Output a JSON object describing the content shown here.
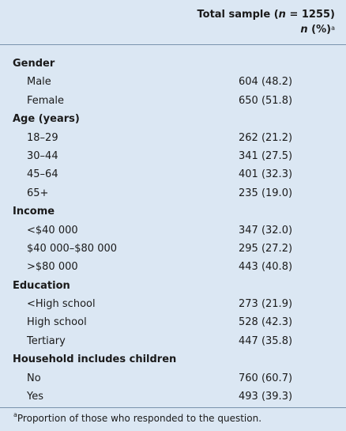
{
  "header": {
    "title_prefix": "Total sample (",
    "title_n": "n",
    "title_suffix": " = 1255)",
    "subtitle_n": "n",
    "subtitle_suffix": " (%)",
    "subtitle_sup": "a"
  },
  "groups": [
    {
      "label": "Gender",
      "rows": [
        {
          "label": "Male",
          "value": "604 (48.2)"
        },
        {
          "label": "Female",
          "value": "650 (51.8)"
        }
      ]
    },
    {
      "label": "Age (years)",
      "rows": [
        {
          "label": "18–29",
          "value": "262 (21.2)"
        },
        {
          "label": "30–44",
          "value": "341 (27.5)"
        },
        {
          "label": "45–64",
          "value": "401 (32.3)"
        },
        {
          "label": "65+",
          "value": "235 (19.0)"
        }
      ]
    },
    {
      "label": "Income",
      "rows": [
        {
          "label": "<$40 000",
          "value": "347 (32.0)"
        },
        {
          "label": "$40 000–$80 000",
          "value": "295 (27.2)"
        },
        {
          "label": ">$80 000",
          "value": "443 (40.8)"
        }
      ]
    },
    {
      "label": "Education",
      "rows": [
        {
          "label": "<High school",
          "value": "273 (21.9)"
        },
        {
          "label": "High school",
          "value": "528 (42.3)"
        },
        {
          "label": "Tertiary",
          "value": "447 (35.8)"
        }
      ]
    },
    {
      "label": "Household includes children",
      "rows": [
        {
          "label": "No",
          "value": "760 (60.7)"
        },
        {
          "label": "Yes",
          "value": "493 (39.3)"
        }
      ]
    }
  ],
  "footnote": {
    "sup": "a",
    "text": "Proportion of those who responded to the question."
  }
}
